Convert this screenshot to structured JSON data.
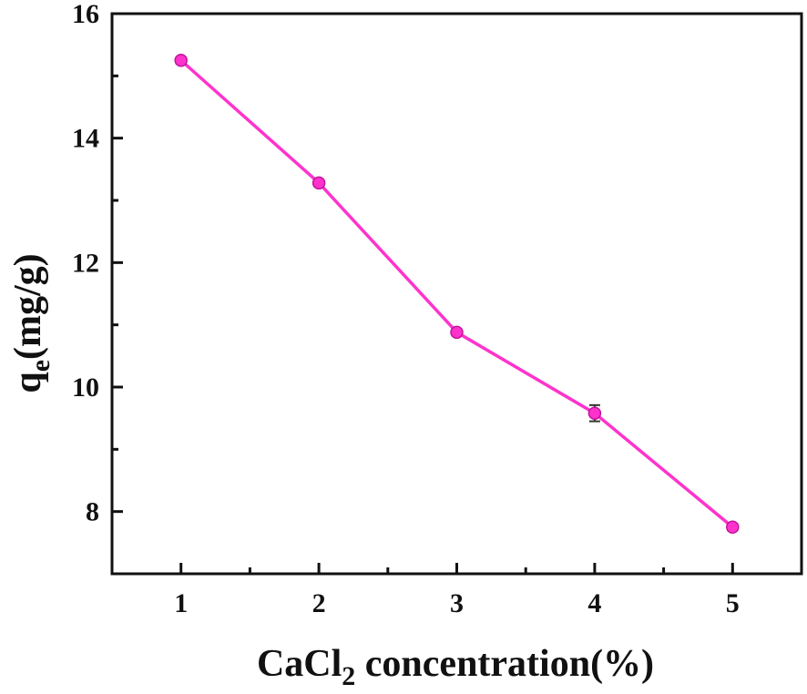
{
  "chart_data": {
    "type": "line",
    "x": [
      1,
      2,
      3,
      4,
      5
    ],
    "series": [
      {
        "values": [
          15.25,
          13.28,
          10.88,
          9.58,
          7.75
        ],
        "error": [
          0.05,
          0.05,
          0.05,
          0.13,
          0.05
        ],
        "color": "#FF33CC"
      }
    ],
    "xlabel": {
      "main": "CaCl",
      "sub": "2",
      "rest": " concentration(%)"
    },
    "ylabel": {
      "main": "q",
      "sub": "e",
      "rest": "(mg/g)"
    },
    "xlim": [
      0.5,
      5.5
    ],
    "ylim": [
      7,
      16
    ],
    "x_ticks": [
      1,
      2,
      3,
      4,
      5
    ],
    "y_ticks": [
      8,
      10,
      12,
      14,
      16
    ],
    "grid": false,
    "marker": "circle"
  }
}
